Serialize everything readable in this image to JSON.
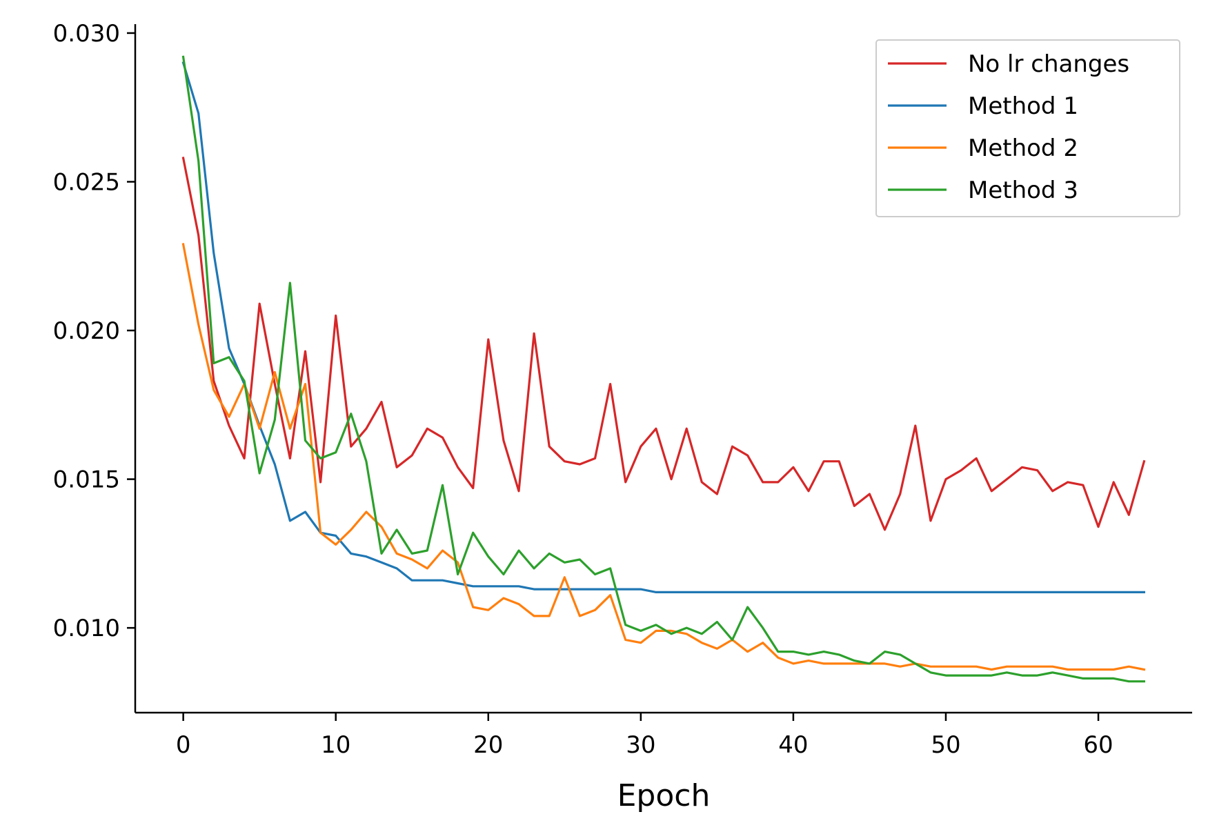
{
  "chart_data": {
    "type": "line",
    "title": "",
    "xlabel": "Epoch",
    "ylabel": "",
    "xlim": [
      -3.15,
      66.15
    ],
    "ylim": [
      0.00715,
      0.0303
    ],
    "xticks": [
      0,
      10,
      20,
      30,
      40,
      50,
      60
    ],
    "xtick_labels": [
      "0",
      "10",
      "20",
      "30",
      "40",
      "50",
      "60"
    ],
    "yticks": [
      0.01,
      0.015,
      0.02,
      0.025,
      0.03
    ],
    "ytick_labels": [
      "0.010",
      "0.015",
      "0.020",
      "0.025",
      "0.030"
    ],
    "grid": false,
    "legend_position": "top-right",
    "x": [
      0,
      1,
      2,
      3,
      4,
      5,
      6,
      7,
      8,
      9,
      10,
      11,
      12,
      13,
      14,
      15,
      16,
      17,
      18,
      19,
      20,
      21,
      22,
      23,
      24,
      25,
      26,
      27,
      28,
      29,
      30,
      31,
      32,
      33,
      34,
      35,
      36,
      37,
      38,
      39,
      40,
      41,
      42,
      43,
      44,
      45,
      46,
      47,
      48,
      49,
      50,
      51,
      52,
      53,
      54,
      55,
      56,
      57,
      58,
      59,
      60,
      61,
      62,
      63
    ],
    "series": [
      {
        "name": "No lr changes",
        "color": "#d62728",
        "values": [
          0.0258,
          0.0232,
          0.0183,
          0.0168,
          0.0157,
          0.0209,
          0.0182,
          0.0157,
          0.0193,
          0.0149,
          0.0205,
          0.0161,
          0.0167,
          0.0176,
          0.0154,
          0.0158,
          0.0167,
          0.0164,
          0.0154,
          0.0147,
          0.0197,
          0.0163,
          0.0146,
          0.0199,
          0.0161,
          0.0156,
          0.0155,
          0.0157,
          0.0182,
          0.0149,
          0.0161,
          0.0167,
          0.015,
          0.0167,
          0.0149,
          0.0145,
          0.0161,
          0.0158,
          0.0149,
          0.0149,
          0.0154,
          0.0146,
          0.0156,
          0.0156,
          0.0141,
          0.0145,
          0.0133,
          0.0145,
          0.0168,
          0.0136,
          0.015,
          0.0153,
          0.0157,
          0.0146,
          0.015,
          0.0154,
          0.0153,
          0.0146,
          0.0149,
          0.0148,
          0.0134,
          0.0149,
          0.0138,
          0.0156
        ]
      },
      {
        "name": "Method 1",
        "color": "#1f77b4",
        "values": [
          0.029,
          0.0273,
          0.0226,
          0.0194,
          0.0182,
          0.0168,
          0.0155,
          0.0136,
          0.0139,
          0.0132,
          0.0131,
          0.0125,
          0.0124,
          0.0122,
          0.012,
          0.0116,
          0.0116,
          0.0116,
          0.0115,
          0.0114,
          0.0114,
          0.0114,
          0.0114,
          0.0113,
          0.0113,
          0.0113,
          0.0113,
          0.0113,
          0.0113,
          0.0113,
          0.0113,
          0.0112,
          0.0112,
          0.0112,
          0.0112,
          0.0112,
          0.0112,
          0.0112,
          0.0112,
          0.0112,
          0.0112,
          0.0112,
          0.0112,
          0.0112,
          0.0112,
          0.0112,
          0.0112,
          0.0112,
          0.0112,
          0.0112,
          0.0112,
          0.0112,
          0.0112,
          0.0112,
          0.0112,
          0.0112,
          0.0112,
          0.0112,
          0.0112,
          0.0112,
          0.0112,
          0.0112,
          0.0112,
          0.0112
        ]
      },
      {
        "name": "Method 2",
        "color": "#ff7f0e",
        "values": [
          0.0229,
          0.0202,
          0.018,
          0.0171,
          0.0182,
          0.0167,
          0.0186,
          0.0167,
          0.0182,
          0.0132,
          0.0128,
          0.0133,
          0.0139,
          0.0134,
          0.0125,
          0.0123,
          0.012,
          0.0126,
          0.0122,
          0.0107,
          0.0106,
          0.011,
          0.0108,
          0.0104,
          0.0104,
          0.0117,
          0.0104,
          0.0106,
          0.0111,
          0.0096,
          0.0095,
          0.0099,
          0.0099,
          0.0098,
          0.0095,
          0.0093,
          0.0096,
          0.0092,
          0.0095,
          0.009,
          0.0088,
          0.0089,
          0.0088,
          0.0088,
          0.0088,
          0.0088,
          0.0088,
          0.0087,
          0.0088,
          0.0087,
          0.0087,
          0.0087,
          0.0087,
          0.0086,
          0.0087,
          0.0087,
          0.0087,
          0.0087,
          0.0086,
          0.0086,
          0.0086,
          0.0086,
          0.0087,
          0.0086
        ]
      },
      {
        "name": "Method 3",
        "color": "#2ca02c",
        "values": [
          0.0292,
          0.0257,
          0.0189,
          0.0191,
          0.0183,
          0.0152,
          0.017,
          0.0216,
          0.0163,
          0.0157,
          0.0159,
          0.0172,
          0.0156,
          0.0125,
          0.0133,
          0.0125,
          0.0126,
          0.0148,
          0.0118,
          0.0132,
          0.0124,
          0.0118,
          0.0126,
          0.012,
          0.0125,
          0.0122,
          0.0123,
          0.0118,
          0.012,
          0.0101,
          0.0099,
          0.0101,
          0.0098,
          0.01,
          0.0098,
          0.0102,
          0.0096,
          0.0107,
          0.01,
          0.0092,
          0.0092,
          0.0091,
          0.0092,
          0.0091,
          0.0089,
          0.0088,
          0.0092,
          0.0091,
          0.0088,
          0.0085,
          0.0084,
          0.0084,
          0.0084,
          0.0084,
          0.0085,
          0.0084,
          0.0084,
          0.0085,
          0.0084,
          0.0083,
          0.0083,
          0.0083,
          0.0082,
          0.0082
        ]
      }
    ]
  }
}
